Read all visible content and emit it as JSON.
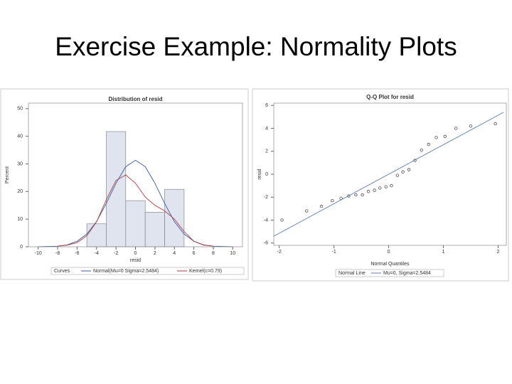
{
  "slide_title": "Exercise Example: Normality Plots",
  "chart_data": [
    {
      "type": "histogram",
      "title": "Distribution of resid",
      "xlabel": "resid",
      "ylabel": "Percent",
      "bins": [
        -5,
        -3,
        -1,
        1,
        3,
        5
      ],
      "values": [
        8.3,
        41.7,
        16.7,
        12.5,
        20.8
      ],
      "color": "#dfe4ef",
      "xlim": [
        -11,
        11
      ],
      "xticks": [
        -10,
        -8,
        -6,
        -4,
        -2,
        0,
        2,
        4,
        6,
        8,
        10
      ],
      "ylim": [
        0,
        52
      ],
      "yticks": [
        0,
        10,
        20,
        30,
        40,
        50
      ],
      "legend_title": "Curves",
      "series": [
        {
          "name": "Normal(Mu=0 Sigma=2.5484)",
          "color": "#3b5ba5",
          "x": [
            -10,
            -9,
            -8,
            -7,
            -6,
            -5,
            -4,
            -3,
            -2,
            -1,
            0,
            1,
            2,
            3,
            4,
            5,
            6,
            7,
            8,
            9,
            10
          ],
          "values": [
            0,
            0.1,
            0.2,
            0.7,
            2.0,
            4.6,
            9.1,
            15.7,
            23.0,
            29.0,
            31.3,
            29.0,
            23.0,
            15.7,
            9.1,
            4.6,
            2.0,
            0.7,
            0.2,
            0.1,
            0
          ]
        },
        {
          "name": "Kernel(c=0.79)",
          "color": "#b03a3a",
          "x": [
            -8,
            -7,
            -6,
            -5,
            -4,
            -3,
            -2,
            -1,
            0,
            1,
            2,
            3,
            4,
            5,
            6,
            7,
            8
          ],
          "values": [
            0.2,
            0.6,
            1.5,
            4,
            9,
            17,
            24,
            26,
            23,
            18,
            15,
            13,
            10,
            5.5,
            2,
            0.6,
            0.2
          ]
        }
      ]
    },
    {
      "type": "scatter",
      "title": "Q-Q Plot for resid",
      "xlabel": "Normal Quantiles",
      "ylabel": "resid",
      "xlim": [
        -2.1,
        2.15
      ],
      "xticks": [
        -2,
        -1,
        0,
        1,
        2
      ],
      "ylim": [
        -6.2,
        6.2
      ],
      "yticks": [
        -6,
        -4,
        -2,
        0,
        2,
        4,
        6
      ],
      "legend_title": "Normal Line",
      "points": {
        "color": "#333333",
        "x": [
          -1.95,
          -1.5,
          -1.23,
          -1.03,
          -0.87,
          -0.73,
          -0.6,
          -0.48,
          -0.37,
          -0.26,
          -0.16,
          -0.05,
          0.05,
          0.16,
          0.26,
          0.37,
          0.48,
          0.6,
          0.73,
          0.87,
          1.03,
          1.23,
          1.5,
          1.95
        ],
        "values": [
          -4.0,
          -3.2,
          -2.8,
          -2.3,
          -2.1,
          -1.9,
          -1.8,
          -1.8,
          -1.5,
          -1.4,
          -1.2,
          -1.1,
          -1.0,
          -0.1,
          0.2,
          0.4,
          1.2,
          2.1,
          2.6,
          3.2,
          3.3,
          4.0,
          4.2,
          4.4
        ]
      },
      "series": [
        {
          "name": "Mu=0, Sigma=2.5484",
          "color": "#5b7bb5",
          "x": [
            -2.1,
            2.1
          ],
          "values": [
            -5.4,
            5.4
          ]
        }
      ]
    }
  ]
}
